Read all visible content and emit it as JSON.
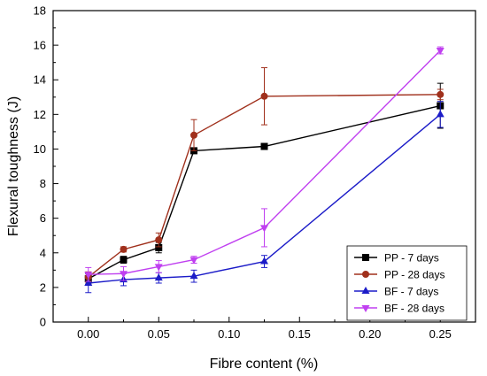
{
  "chart_data": {
    "type": "line",
    "title": "",
    "xlabel": "Fibre content (%)",
    "ylabel": "Flexural toughness (J)",
    "xlim": [
      -0.025,
      0.275
    ],
    "ylim": [
      0,
      18
    ],
    "x_ticks": [
      "0.00",
      "0.05",
      "0.10",
      "0.15",
      "0.20",
      "0.25"
    ],
    "y_ticks": [
      "0",
      "2",
      "4",
      "6",
      "8",
      "10",
      "12",
      "14",
      "16",
      "18"
    ],
    "grid": false,
    "legend_position": "bottom-right",
    "series": [
      {
        "name": "PP - 7 days",
        "color": "#000000",
        "marker": "square",
        "x": [
          0,
          0.025,
          0.05,
          0.075,
          0.125,
          0.25
        ],
        "y": [
          2.5,
          3.6,
          4.3,
          9.9,
          10.15,
          12.5
        ],
        "err": [
          0.3,
          0.2,
          0.3,
          0.15,
          0.15,
          1.3
        ]
      },
      {
        "name": "PP - 28 days",
        "color": "#a0301c",
        "marker": "circle",
        "x": [
          0,
          0.025,
          0.05,
          0.075,
          0.125,
          0.25
        ],
        "y": [
          2.6,
          4.2,
          4.75,
          10.8,
          13.05,
          13.15
        ],
        "err": [
          0.3,
          0.15,
          0.4,
          0.9,
          1.65,
          0.3
        ]
      },
      {
        "name": "BF - 7 days",
        "color": "#1c1cc8",
        "marker": "triangle-up",
        "x": [
          0,
          0.025,
          0.05,
          0.075,
          0.125,
          0.25
        ],
        "y": [
          2.25,
          2.45,
          2.55,
          2.65,
          3.5,
          12.0
        ],
        "err": [
          0.55,
          0.35,
          0.3,
          0.35,
          0.35,
          0.75
        ]
      },
      {
        "name": "BF - 28 days",
        "color": "#c040f0",
        "marker": "triangle-down",
        "x": [
          0,
          0.025,
          0.05,
          0.075,
          0.125,
          0.25
        ],
        "y": [
          2.75,
          2.8,
          3.2,
          3.6,
          5.45,
          15.7
        ],
        "err": [
          0.4,
          0.4,
          0.35,
          0.2,
          1.1,
          0.2
        ]
      }
    ]
  }
}
